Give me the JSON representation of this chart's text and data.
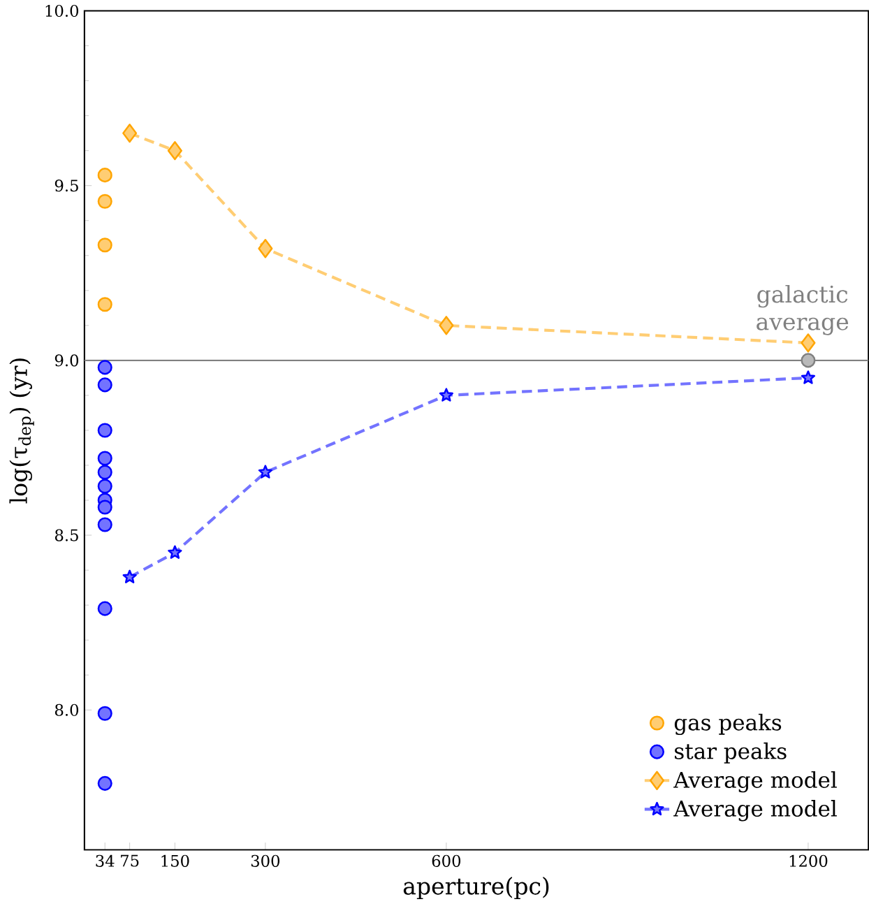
{
  "chart_data": {
    "type": "scatter",
    "xlabel": "aperture(pc)",
    "ylabel": "log(τ$_{dep}$) (yr)",
    "xlim": [
      0,
      1300
    ],
    "ylim": [
      7.6,
      10.0
    ],
    "xticks": [
      34,
      75,
      150,
      300,
      600,
      1200
    ],
    "yticks": [
      {
        "value": 8.0,
        "label": "8.0"
      },
      {
        "value": 8.5,
        "label": "8.5"
      },
      {
        "value": 9.0,
        "label": "9.0"
      },
      {
        "value": 9.5,
        "label": "9.5"
      },
      {
        "value": 10.0,
        "label": "10.0"
      }
    ],
    "legend": "bottom right",
    "grid": false,
    "ref_lines": [
      {
        "axis": "y",
        "value": 9.0,
        "color": "#808080"
      }
    ],
    "annotations": [
      {
        "text": "galactic average",
        "x": 1200,
        "y": 9.0
      }
    ],
    "series": [
      {
        "name": "gas peaks",
        "marker": "circle",
        "color": "#ffa500",
        "x": [
          34,
          34,
          34,
          34
        ],
        "values": [
          9.53,
          9.455,
          9.33,
          9.16
        ]
      },
      {
        "name": "star peaks",
        "marker": "circle",
        "color": "#0000ff",
        "x": [
          34,
          34,
          34,
          34,
          34,
          34,
          34,
          34,
          34,
          34,
          34,
          34
        ],
        "values": [
          8.98,
          8.93,
          8.8,
          8.72,
          8.68,
          8.64,
          8.6,
          8.58,
          8.53,
          8.29,
          7.99,
          7.79
        ]
      },
      {
        "name": "Average model",
        "type": "line",
        "marker": "diamond",
        "line_style": "dashed",
        "color": "#ffa500",
        "x": [
          75,
          150,
          300,
          600,
          1200
        ],
        "values": [
          9.65,
          9.6,
          9.32,
          9.1,
          9.05
        ]
      },
      {
        "name": "Average model",
        "type": "line",
        "marker": "star",
        "line_style": "dashed",
        "color": "#0000ff",
        "x": [
          75,
          150,
          300,
          600,
          1200
        ],
        "values": [
          8.38,
          8.45,
          8.68,
          8.9,
          8.95
        ]
      },
      {
        "marker": "circle",
        "color": "#808080",
        "x": [
          1200
        ],
        "values": [
          9.0
        ]
      }
    ]
  }
}
